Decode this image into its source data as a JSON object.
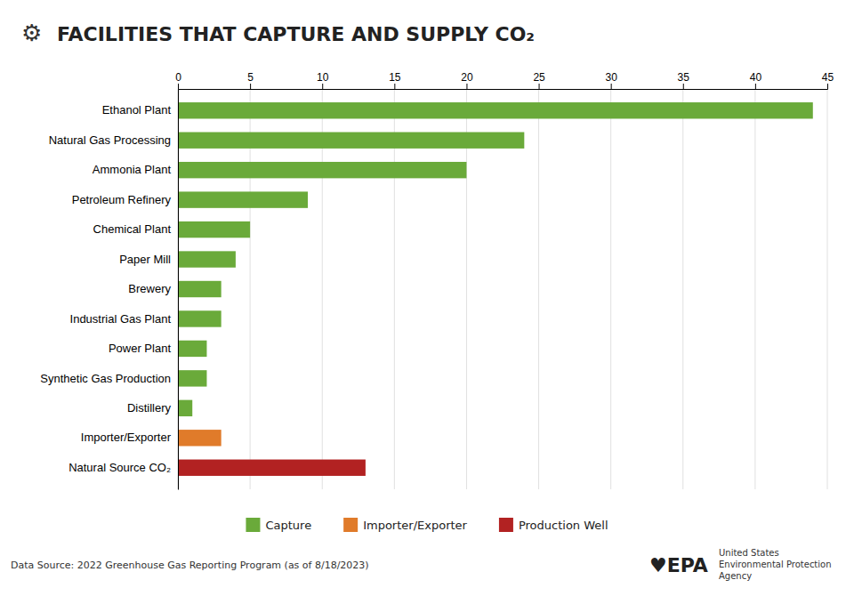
{
  "chart_data": {
    "type": "bar",
    "orientation": "horizontal",
    "stacked": true,
    "title": "FACILITIES THAT CAPTURE AND SUPPLY CO₂",
    "categories": [
      "Ethanol Plant",
      "Natural Gas Processing",
      "Ammonia Plant",
      "Petroleum Refinery",
      "Chemical Plant",
      "Paper Mill",
      "Brewery",
      "Industrial Gas Plant",
      "Power Plant",
      "Synthetic Gas Production",
      "Distillery",
      "Importer/Exporter",
      "Natural Source CO₂"
    ],
    "series": [
      {
        "name": "Capture",
        "color": "#6aaa3a",
        "values": [
          44,
          24,
          20,
          9,
          5,
          4,
          3,
          3,
          2,
          2,
          1,
          null,
          null
        ]
      },
      {
        "name": "Importer/Exporter",
        "color": "#e07b2a",
        "values": [
          null,
          null,
          null,
          null,
          null,
          null,
          null,
          null,
          null,
          null,
          null,
          3,
          null
        ]
      },
      {
        "name": "Production Well",
        "color": "#b22222",
        "values": [
          null,
          null,
          null,
          null,
          null,
          null,
          null,
          null,
          null,
          null,
          null,
          null,
          13
        ]
      }
    ],
    "xlim": [
      0,
      45
    ],
    "xticks": [
      0,
      5,
      10,
      15,
      20,
      25,
      30,
      35,
      40,
      45
    ],
    "grid": true,
    "legend": "bottom",
    "annotations": [
      "⚙",
      "Data Source: 2022 Greenhouse Gas Reporting Program (as of 8/18/2023)",
      "♥EPA",
      "United States",
      "Environmental Protection",
      "Agency"
    ]
  }
}
